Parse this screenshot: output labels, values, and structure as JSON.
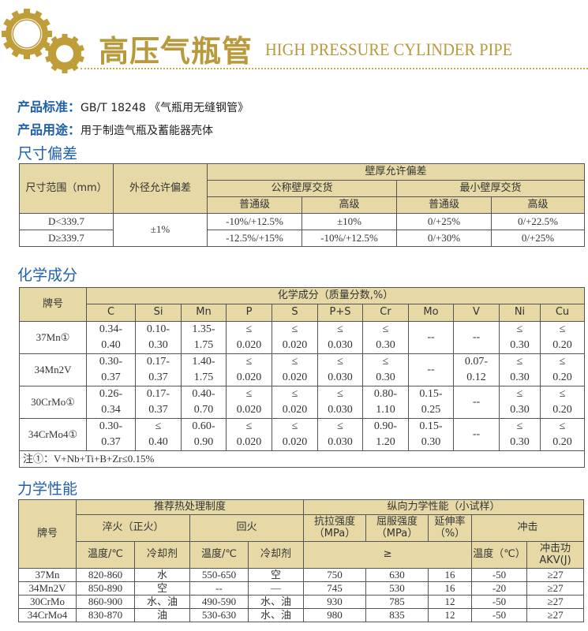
{
  "header": {
    "title_cn": "高压气瓶管",
    "title_en": "HIGH PRESSURE CYLINDER PIPE",
    "brand_color": "#b89a3c",
    "logo": "gears-icon"
  },
  "info": {
    "standard_label": "产品标准：",
    "standard_value": "GB/T 18248 《气瓶用无缝钢管》",
    "usage_label": "产品用途：",
    "usage_value": "用于制造气瓶及蓄能器壳体"
  },
  "dimension": {
    "title": "尺寸偏差",
    "h_range": "尺寸范围（mm）",
    "h_od": "外径允许偏差",
    "h_wall": "壁厚允许偏差",
    "h_nominal": "公称壁厚交货",
    "h_min": "最小壁厚交货",
    "h_normal": "普通级",
    "h_high": "高级",
    "od_value": "±1%",
    "rows": [
      {
        "range": "D<339.7",
        "nom_normal": "-10%/+12.5%",
        "nom_high": "±10%",
        "min_normal": "0/+25%",
        "min_high": "0/+22.5%"
      },
      {
        "range": "D≥339.7",
        "nom_normal": "-12.5%/+15%",
        "nom_high": "-10%/+12.5%",
        "min_normal": "0/+30%",
        "min_high": "0/+25%"
      }
    ]
  },
  "chemical": {
    "title": "化学成分",
    "h_grade": "牌号",
    "h_comp": "化学成分（质量分数,%）",
    "elements": [
      "C",
      "Si",
      "Mn",
      "P",
      "S",
      "P+S",
      "Cr",
      "Mo",
      "V",
      "Ni",
      "Cu"
    ],
    "rows": [
      {
        "grade": "37Mn①",
        "values": [
          [
            "0.34-",
            "0.40"
          ],
          [
            "0.10-",
            "0.30"
          ],
          [
            "1.35-",
            "1.75"
          ],
          [
            "≤",
            "0.020"
          ],
          [
            "≤",
            "0.020"
          ],
          [
            "≤",
            "0.030"
          ],
          [
            "≤",
            "0.30"
          ],
          [
            "--"
          ],
          [
            "--"
          ],
          [
            "≤",
            "0.30"
          ],
          [
            "≤",
            "0.20"
          ]
        ]
      },
      {
        "grade": "34Mn2V",
        "values": [
          [
            "0.30-",
            "0.37"
          ],
          [
            "0.17-",
            "0.37"
          ],
          [
            "1.40-",
            "1.75"
          ],
          [
            "≤",
            "0.020"
          ],
          [
            "≤",
            "0.020"
          ],
          [
            "≤",
            "0.030"
          ],
          [
            "≤",
            "0.30"
          ],
          [
            "--"
          ],
          [
            "0.07-",
            "0.12"
          ],
          [
            "≤",
            "0.30"
          ],
          [
            "≤",
            "0.20"
          ]
        ]
      },
      {
        "grade": "30CrMo①",
        "values": [
          [
            "0.26-",
            "0.34"
          ],
          [
            "0.17-",
            "0.37"
          ],
          [
            "0.40-",
            "0.70"
          ],
          [
            "≤",
            "0.020"
          ],
          [
            "≤",
            "0.020"
          ],
          [
            "≤",
            "0.030"
          ],
          [
            "0.80-",
            "1.10"
          ],
          [
            "0.15-",
            "0.25"
          ],
          [
            "--"
          ],
          [
            "≤",
            "0.30"
          ],
          [
            "≤",
            "0.20"
          ]
        ]
      },
      {
        "grade": "34CrMo4①",
        "values": [
          [
            "0.30-",
            "0.37"
          ],
          [
            "≤",
            "0.40"
          ],
          [
            "0.60-",
            "0.90"
          ],
          [
            "≤",
            "0.020"
          ],
          [
            "≤",
            "0.020"
          ],
          [
            "≤",
            "0.030"
          ],
          [
            "0.90-",
            "1.20"
          ],
          [
            "0.15-",
            "0.30"
          ],
          [
            "--"
          ],
          [
            "≤",
            "0.30"
          ],
          [
            "≤",
            "0.20"
          ]
        ]
      }
    ],
    "note": "注①：V+Nb+Ti+B+Zr≤0.15%"
  },
  "mechanical": {
    "title": "力学性能",
    "h_grade": "牌号",
    "h_heat": "推荐热处理制度",
    "h_long": "纵向力学性能（小试样）",
    "h_quench": "淬火（正火）",
    "h_temper": "回火",
    "h_tensile": "抗拉强度（MPa）",
    "h_yield": "屈服强度（MPa）",
    "h_elong": "延伸率（%）",
    "h_impact": "冲击",
    "h_temp": "温度/℃",
    "h_coolant": "冷却剂",
    "h_ge": "≥",
    "h_itemp": "温度（℃）",
    "h_akv": "冲击功AKV(J)",
    "rows": [
      [
        "37Mn",
        "820-860",
        "水",
        "550-650",
        "空",
        "750",
        "630",
        "16",
        "-50",
        "≥27"
      ],
      [
        "34Mn2V",
        "850-890",
        "空",
        "--",
        "—",
        "745",
        "530",
        "16",
        "-20",
        "≥27"
      ],
      [
        "30CrMo",
        "860-900",
        "水、油",
        "490-590",
        "水、油",
        "930",
        "785",
        "12",
        "-50",
        "≥27"
      ],
      [
        "34CrMo4",
        "830-870",
        "油",
        "530-630",
        "水、油",
        "980",
        "835",
        "12",
        "-50",
        "≥27"
      ]
    ]
  }
}
